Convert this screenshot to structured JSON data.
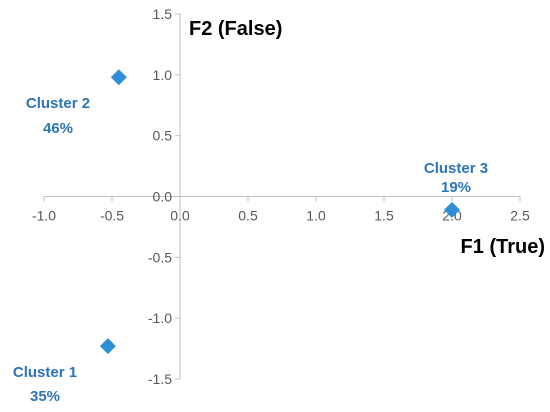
{
  "chart_data": {
    "type": "scatter",
    "xlabel": "F1 (True)",
    "ylabel": "F2 (False)",
    "xlim": [
      -1.0,
      2.5
    ],
    "ylim": [
      -1.5,
      1.5
    ],
    "x_ticks": [
      "-1.0",
      "-0.5",
      "0.0",
      "0.5",
      "1.0",
      "1.5",
      "2.0",
      "2.5"
    ],
    "y_ticks": [
      "1.5",
      "1.0",
      "0.5",
      "0.0",
      "-0.5",
      "-1.0",
      "-1.5"
    ],
    "grid": false,
    "marker": "diamond",
    "marker_color": "#2E8FD6",
    "label_color": "#2E75B6",
    "points": [
      {
        "label": "Cluster 1",
        "percent": "35%",
        "x": -0.53,
        "y": -1.23
      },
      {
        "label": "Cluster 2",
        "percent": "46%",
        "x": -0.45,
        "y": 0.98
      },
      {
        "label": "Cluster 3",
        "percent": "19%",
        "x": 2.0,
        "y": -0.11
      }
    ]
  }
}
